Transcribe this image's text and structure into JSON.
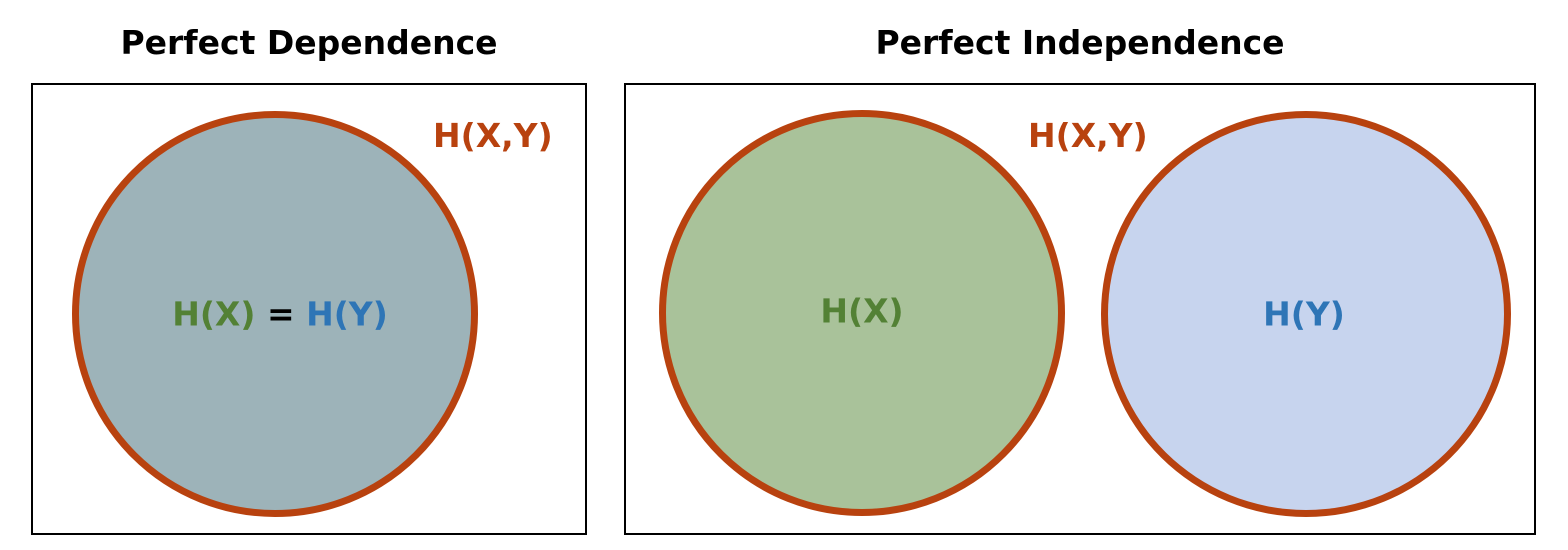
{
  "panels": {
    "dependence": {
      "title": "Perfect Dependence",
      "joint_label": "H(X,Y)",
      "circle_label": {
        "x": "H(X)",
        "eq": "=",
        "y": "H(Y)"
      }
    },
    "independence": {
      "title": "Perfect Independence",
      "joint_label": "H(X,Y)",
      "circle_x_label": "H(X)",
      "circle_y_label": "H(Y)"
    }
  },
  "colors": {
    "outline": "#b8420f",
    "x_fill": "#a9c29a",
    "y_fill": "#c7d4ee",
    "overlap_fill": "#9db3b9",
    "x_text": "#538135",
    "y_text": "#2e75b6",
    "eq_text": "#000000"
  }
}
